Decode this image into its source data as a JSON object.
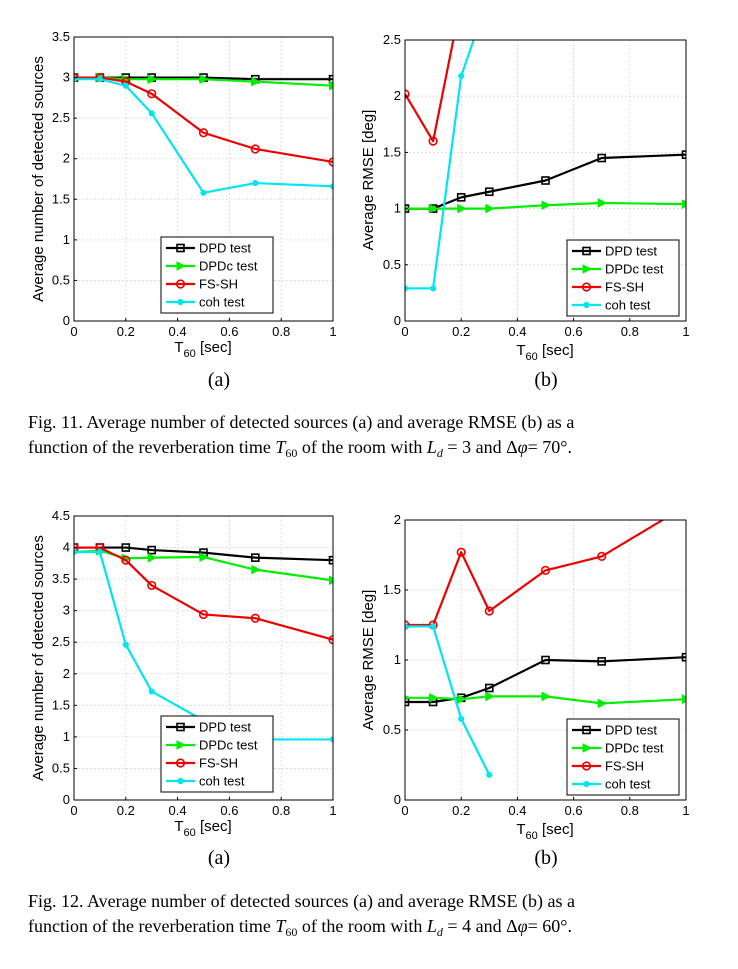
{
  "colors": {
    "dpd": "#000000",
    "dpdc": "#00ee00",
    "fssh": "#ee0000",
    "coh": "#00e5ee"
  },
  "legend": [
    "DPD test",
    "DPDc test",
    "FS-SH",
    "coh test"
  ],
  "xlabel": {
    "main": "T",
    "sub": "60",
    "rest": " [sec]"
  },
  "sublabels": [
    "(a)",
    "(b)"
  ],
  "captions": [
    {
      "line1": "Fig. 11.   Average number of detected sources (a) and average RMSE (b) as a",
      "line2_a": "function of the reverberation time ",
      "T": "T",
      "T_sub": "60",
      "line2_b": " of the room with ",
      "L": "L",
      "L_sub": "d",
      "line2_c": " = 3 and Δ",
      "phi": "φ",
      "line2_d": "= 70°."
    },
    {
      "line1": "Fig. 12.   Average number of detected sources (a) and average RMSE (b) as a",
      "line2_a": "function of the reverberation time ",
      "T": "T",
      "T_sub": "60",
      "line2_b": " of the room with ",
      "L": "L",
      "L_sub": "d",
      "line2_c": " = 4 and Δ",
      "phi": "φ",
      "line2_d": "= 60°."
    }
  ],
  "chart_data": [
    {
      "type": "line",
      "panel": "fig11a",
      "ylabel": "Average number of detected sources",
      "xlim": [
        0,
        1
      ],
      "ylim": [
        0,
        3.5
      ],
      "xticks": [
        0,
        0.2,
        0.4,
        0.6,
        0.8,
        1
      ],
      "xtick_labels": [
        "0",
        "0.2",
        "0.4",
        "0.6",
        "0.8",
        "1"
      ],
      "yticks": [
        0,
        0.5,
        1,
        1.5,
        2,
        2.5,
        3,
        3.5
      ],
      "ytick_labels": [
        "0",
        "0.5",
        "1",
        "1.5",
        "2",
        "2.5",
        "3",
        "3.5"
      ],
      "x": [
        0,
        0.1,
        0.2,
        0.3,
        0.5,
        0.7,
        1
      ],
      "grid": true,
      "legend_position": "bottom-right",
      "series": [
        {
          "name": "DPD test",
          "values": [
            3,
            3,
            3,
            3,
            3,
            2.98,
            2.98
          ]
        },
        {
          "name": "DPDc test",
          "values": [
            3,
            3,
            2.98,
            2.98,
            2.98,
            2.95,
            2.9
          ]
        },
        {
          "name": "FS-SH",
          "values": [
            3,
            3,
            2.95,
            2.8,
            2.32,
            2.12,
            1.96
          ]
        },
        {
          "name": "coh test",
          "values": [
            2.98,
            2.98,
            2.9,
            2.56,
            1.58,
            1.7,
            1.66
          ]
        }
      ]
    },
    {
      "type": "line",
      "panel": "fig11b",
      "ylabel": "Average RMSE [deg]",
      "xlim": [
        0,
        1
      ],
      "ylim": [
        0,
        2.5
      ],
      "xticks": [
        0,
        0.2,
        0.4,
        0.6,
        0.8,
        1
      ],
      "xtick_labels": [
        "0",
        "0.2",
        "0.4",
        "0.6",
        "0.8",
        "1"
      ],
      "yticks": [
        0,
        0.5,
        1,
        1.5,
        2,
        2.5
      ],
      "ytick_labels": [
        "0",
        "0.5",
        "1",
        "1.5",
        "2",
        "2.5"
      ],
      "x": [
        0,
        0.1,
        0.2,
        0.3,
        0.5,
        0.7,
        1
      ],
      "grid": true,
      "legend_position": "bottom-right",
      "series": [
        {
          "name": "DPD test",
          "values": [
            1,
            1,
            1.1,
            1.15,
            1.25,
            1.45,
            1.48
          ]
        },
        {
          "name": "DPDc test",
          "values": [
            1,
            1,
            1,
            1,
            1.03,
            1.05,
            1.04
          ]
        },
        {
          "name": "FS-SH",
          "values": [
            2.02,
            1.6,
            2.85,
            null,
            null,
            null,
            null
          ]
        },
        {
          "name": "coh test",
          "values": [
            0.29,
            0.29,
            2.18,
            2.9,
            null,
            null,
            null
          ]
        }
      ]
    },
    {
      "type": "line",
      "panel": "fig12a",
      "ylabel": "Average number of detected sources",
      "xlim": [
        0,
        1
      ],
      "ylim": [
        0,
        4.5
      ],
      "xticks": [
        0,
        0.2,
        0.4,
        0.6,
        0.8,
        1
      ],
      "xtick_labels": [
        "0",
        "0.2",
        "0.4",
        "0.6",
        "0.8",
        "1"
      ],
      "yticks": [
        0,
        0.5,
        1,
        1.5,
        2,
        2.5,
        3,
        3.5,
        4,
        4.5
      ],
      "ytick_labels": [
        "0",
        "0.5",
        "1",
        "1.5",
        "2",
        "2.5",
        "3",
        "3.5",
        "4",
        "4.5"
      ],
      "x": [
        0,
        0.1,
        0.2,
        0.3,
        0.5,
        0.7,
        1
      ],
      "grid": true,
      "legend_position": "bottom-right",
      "series": [
        {
          "name": "DPD test",
          "values": [
            4,
            4,
            4,
            3.96,
            3.92,
            3.84,
            3.8
          ]
        },
        {
          "name": "DPDc test",
          "values": [
            3.93,
            3.95,
            3.83,
            3.84,
            3.85,
            3.65,
            3.48
          ]
        },
        {
          "name": "FS-SH",
          "values": [
            4,
            4,
            3.8,
            3.4,
            2.94,
            2.88,
            2.54
          ]
        },
        {
          "name": "coh test",
          "values": [
            3.93,
            3.93,
            2.46,
            1.72,
            1.26,
            0.96,
            0.96
          ]
        }
      ]
    },
    {
      "type": "line",
      "panel": "fig12b",
      "ylabel": "Average RMSE [deg]",
      "xlim": [
        0,
        1
      ],
      "ylim": [
        0,
        2
      ],
      "xticks": [
        0,
        0.2,
        0.4,
        0.6,
        0.8,
        1
      ],
      "xtick_labels": [
        "0",
        "0.2",
        "0.4",
        "0.6",
        "0.8",
        "1"
      ],
      "yticks": [
        0,
        0.5,
        1,
        1.5,
        2
      ],
      "ytick_labels": [
        "0",
        "0.5",
        "1",
        "1.5",
        "2"
      ],
      "x": [
        0,
        0.1,
        0.2,
        0.3,
        0.5,
        0.7,
        1
      ],
      "grid": true,
      "legend_position": "bottom-right",
      "series": [
        {
          "name": "DPD test",
          "values": [
            0.7,
            0.7,
            0.73,
            0.8,
            1,
            0.99,
            1.02
          ]
        },
        {
          "name": "DPDc test",
          "values": [
            0.73,
            0.73,
            0.72,
            0.74,
            0.74,
            0.69,
            0.72
          ]
        },
        {
          "name": "FS-SH",
          "values": [
            1.25,
            1.25,
            1.77,
            1.35,
            1.64,
            1.74,
            2.1
          ]
        },
        {
          "name": "coh test",
          "values": [
            1.24,
            1.24,
            0.58,
            0.18,
            null,
            null,
            null
          ]
        }
      ]
    }
  ]
}
